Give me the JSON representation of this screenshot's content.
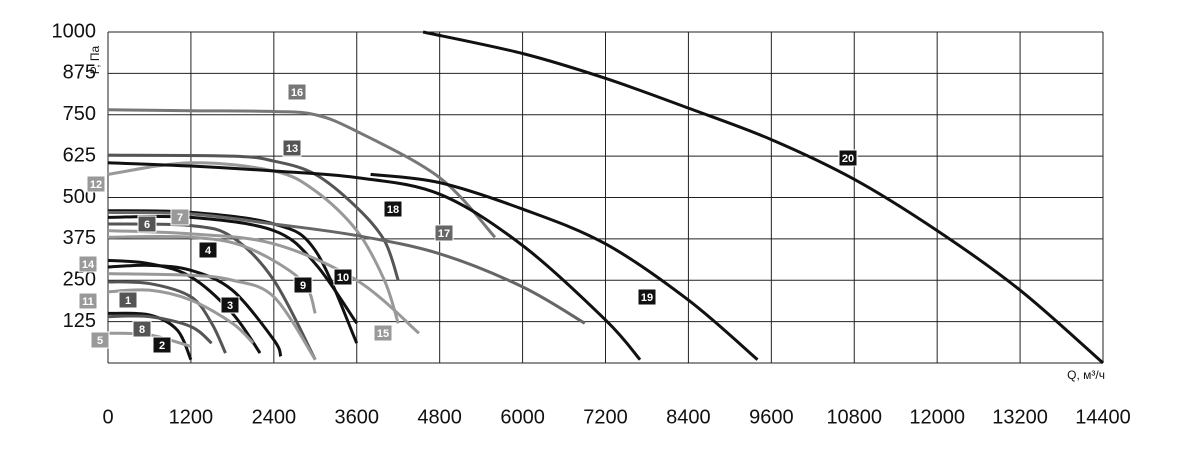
{
  "chart_data": {
    "type": "line",
    "x_label": "Q, м³/ч",
    "y_label": "P, Па",
    "xlim": [
      0,
      14400
    ],
    "ylim": [
      0,
      1000
    ],
    "xticks": [
      0,
      1200,
      2400,
      3600,
      4800,
      6000,
      7200,
      8400,
      9600,
      10800,
      12000,
      13200,
      14400
    ],
    "yticks": [
      125,
      250,
      375,
      500,
      625,
      750,
      875,
      1000
    ],
    "grid": true,
    "series": [
      {
        "name": "1",
        "color": "#555555",
        "x": [
          0,
          600,
          1200,
          1500,
          1700
        ],
        "values": [
          245,
          240,
          200,
          120,
          30
        ]
      },
      {
        "name": "2",
        "color": "#111111",
        "x": [
          0,
          600,
          1000,
          1200
        ],
        "values": [
          150,
          145,
          100,
          10
        ]
      },
      {
        "name": "3",
        "color": "#111111",
        "x": [
          0,
          600,
          1200,
          1800,
          2200
        ],
        "values": [
          310,
          300,
          260,
          150,
          30
        ]
      },
      {
        "name": "4",
        "color": "#111111",
        "x": [
          0,
          600,
          1200,
          1800,
          2400,
          2500
        ],
        "values": [
          290,
          295,
          280,
          220,
          70,
          20
        ]
      },
      {
        "name": "5",
        "color": "#999999",
        "x": [
          0,
          600,
          1200
        ],
        "values": [
          90,
          85,
          50
        ]
      },
      {
        "name": "6",
        "color": "#555555",
        "x": [
          0,
          1200,
          1800,
          2400,
          3000
        ],
        "values": [
          420,
          415,
          380,
          250,
          10
        ]
      },
      {
        "name": "7",
        "color": "#999999",
        "x": [
          0,
          1200,
          2000,
          2800,
          3000
        ],
        "values": [
          380,
          380,
          350,
          250,
          150
        ]
      },
      {
        "name": "8",
        "color": "#555555",
        "x": [
          0,
          600,
          1200,
          1500
        ],
        "values": [
          140,
          140,
          110,
          60
        ]
      },
      {
        "name": "9",
        "color": "#111111",
        "x": [
          0,
          1200,
          2400,
          3000,
          3600
        ],
        "values": [
          440,
          440,
          400,
          300,
          120
        ]
      },
      {
        "name": "10",
        "color": "#111111",
        "x": [
          0,
          1200,
          2400,
          3000,
          3600
        ],
        "values": [
          460,
          455,
          420,
          340,
          60
        ]
      },
      {
        "name": "11",
        "color": "#999999",
        "x": [
          0,
          600,
          1200,
          1800,
          2100
        ],
        "values": [
          215,
          220,
          190,
          120,
          60
        ]
      },
      {
        "name": "12",
        "color": "#999999",
        "x": [
          0,
          1200,
          2400,
          3000,
          3600,
          4000,
          4200
        ],
        "values": [
          570,
          605,
          580,
          520,
          400,
          250,
          120
        ]
      },
      {
        "name": "13",
        "color": "#555555",
        "x": [
          0,
          1800,
          2400,
          3000,
          3600,
          4000,
          4200
        ],
        "values": [
          628,
          625,
          610,
          570,
          470,
          370,
          250
        ]
      },
      {
        "name": "14",
        "color": "#999999",
        "x": [
          0,
          1200,
          1800,
          2400,
          3000
        ],
        "values": [
          270,
          265,
          250,
          200,
          10
        ]
      },
      {
        "name": "15",
        "color": "#999999",
        "x": [
          0,
          1200,
          2400,
          3600,
          4500
        ],
        "values": [
          400,
          390,
          360,
          250,
          90
        ]
      },
      {
        "name": "16",
        "color": "#777777",
        "x": [
          0,
          1200,
          2400,
          3000,
          3600,
          4800,
          5600
        ],
        "values": [
          765,
          762,
          760,
          750,
          700,
          560,
          380
        ]
      },
      {
        "name": "17",
        "color": "#666666",
        "x": [
          0,
          1200,
          2400,
          3600,
          4800,
          6000,
          6900
        ],
        "values": [
          455,
          450,
          420,
          385,
          330,
          230,
          120
        ]
      },
      {
        "name": "18",
        "color": "#111111",
        "x": [
          0,
          1200,
          2400,
          3600,
          4800,
          6000,
          7200,
          7700
        ],
        "values": [
          605,
          595,
          580,
          560,
          510,
          355,
          130,
          10
        ]
      },
      {
        "name": "19",
        "color": "#111111",
        "x": [
          3800,
          4800,
          6000,
          7200,
          8400,
          9400
        ],
        "values": [
          570,
          545,
          465,
          360,
          190,
          10
        ]
      },
      {
        "name": "20",
        "color": "#111111",
        "x": [
          4560,
          6000,
          7200,
          8400,
          9600,
          10800,
          12000,
          13200,
          14400
        ],
        "values": [
          1000,
          935,
          860,
          770,
          675,
          555,
          400,
          220,
          0
        ]
      }
    ]
  }
}
